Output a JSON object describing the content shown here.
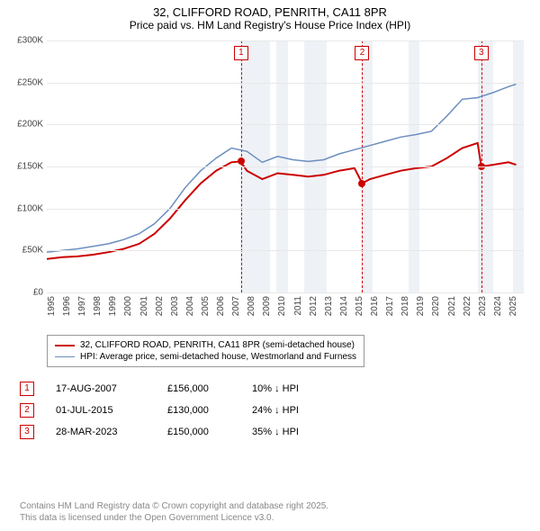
{
  "title": {
    "line1": "32, CLIFFORD ROAD, PENRITH, CA11 8PR",
    "line2": "Price paid vs. HM Land Registry's House Price Index (HPI)"
  },
  "chart": {
    "type": "line",
    "x_range": [
      1995,
      2026
    ],
    "y_range": [
      0,
      300000
    ],
    "y_ticks": [
      0,
      50000,
      100000,
      150000,
      200000,
      250000,
      300000
    ],
    "y_tick_labels": [
      "£0",
      "£50K",
      "£100K",
      "£150K",
      "£200K",
      "£250K",
      "£300K"
    ],
    "x_ticks": [
      1995,
      1996,
      1997,
      1998,
      1999,
      2000,
      2001,
      2002,
      2003,
      2004,
      2005,
      2006,
      2007,
      2008,
      2009,
      2010,
      2011,
      2012,
      2013,
      2014,
      2015,
      2016,
      2017,
      2018,
      2019,
      2020,
      2021,
      2022,
      2023,
      2024,
      2025
    ],
    "background_color": "#ffffff",
    "grid_color": "#e8e8e8",
    "band_color": "#eef2f7",
    "bands": [
      [
        2007.6,
        2009.5
      ],
      [
        2009.9,
        2010.7
      ],
      [
        2011.7,
        2013.2
      ],
      [
        2015.5,
        2016.2
      ],
      [
        2018.5,
        2019.2
      ],
      [
        2023.0,
        2024.0
      ],
      [
        2025.3,
        2026.0
      ]
    ],
    "series": [
      {
        "name": "price_paid",
        "color": "#cc0000",
        "width": 2,
        "points": [
          [
            1995,
            40000
          ],
          [
            1996,
            42000
          ],
          [
            1997,
            43000
          ],
          [
            1998,
            45000
          ],
          [
            1999,
            48000
          ],
          [
            2000,
            52000
          ],
          [
            2001,
            58000
          ],
          [
            2002,
            70000
          ],
          [
            2003,
            88000
          ],
          [
            2004,
            110000
          ],
          [
            2005,
            130000
          ],
          [
            2006,
            145000
          ],
          [
            2007,
            155000
          ],
          [
            2007.6,
            156000
          ],
          [
            2008,
            145000
          ],
          [
            2009,
            135000
          ],
          [
            2010,
            142000
          ],
          [
            2011,
            140000
          ],
          [
            2012,
            138000
          ],
          [
            2013,
            140000
          ],
          [
            2014,
            145000
          ],
          [
            2015,
            148000
          ],
          [
            2015.5,
            130000
          ],
          [
            2016,
            135000
          ],
          [
            2017,
            140000
          ],
          [
            2018,
            145000
          ],
          [
            2019,
            148000
          ],
          [
            2020,
            150000
          ],
          [
            2021,
            160000
          ],
          [
            2022,
            172000
          ],
          [
            2023,
            178000
          ],
          [
            2023.24,
            150000
          ],
          [
            2024,
            152000
          ],
          [
            2025,
            155000
          ],
          [
            2025.5,
            152000
          ]
        ]
      },
      {
        "name": "hpi",
        "color": "#6c8ebf",
        "width": 1.5,
        "points": [
          [
            1995,
            48000
          ],
          [
            1996,
            50000
          ],
          [
            1997,
            52000
          ],
          [
            1998,
            55000
          ],
          [
            1999,
            58000
          ],
          [
            2000,
            63000
          ],
          [
            2001,
            70000
          ],
          [
            2002,
            82000
          ],
          [
            2003,
            100000
          ],
          [
            2004,
            125000
          ],
          [
            2005,
            145000
          ],
          [
            2006,
            160000
          ],
          [
            2007,
            172000
          ],
          [
            2008,
            168000
          ],
          [
            2009,
            155000
          ],
          [
            2010,
            162000
          ],
          [
            2011,
            158000
          ],
          [
            2012,
            156000
          ],
          [
            2013,
            158000
          ],
          [
            2014,
            165000
          ],
          [
            2015,
            170000
          ],
          [
            2016,
            175000
          ],
          [
            2017,
            180000
          ],
          [
            2018,
            185000
          ],
          [
            2019,
            188000
          ],
          [
            2020,
            192000
          ],
          [
            2021,
            210000
          ],
          [
            2022,
            230000
          ],
          [
            2023,
            232000
          ],
          [
            2024,
            238000
          ],
          [
            2025,
            245000
          ],
          [
            2025.5,
            248000
          ]
        ]
      }
    ],
    "sale_markers": [
      {
        "n": 1,
        "year": 2007.63,
        "price": 156000
      },
      {
        "n": 2,
        "year": 2015.5,
        "price": 130000
      },
      {
        "n": 3,
        "year": 2023.24,
        "price": 150000
      }
    ],
    "marker_dash_color": "#cc0000",
    "marker_box_border": "#cc0000"
  },
  "legend": {
    "items": [
      {
        "color": "#cc0000",
        "width": 2,
        "label": "32, CLIFFORD ROAD, PENRITH, CA11 8PR (semi-detached house)"
      },
      {
        "color": "#6c8ebf",
        "width": 1.5,
        "label": "HPI: Average price, semi-detached house, Westmorland and Furness"
      }
    ]
  },
  "sales": [
    {
      "n": "1",
      "date": "17-AUG-2007",
      "price": "£156,000",
      "delta": "10% ↓ HPI"
    },
    {
      "n": "2",
      "date": "01-JUL-2015",
      "price": "£130,000",
      "delta": "24% ↓ HPI"
    },
    {
      "n": "3",
      "date": "28-MAR-2023",
      "price": "£150,000",
      "delta": "35% ↓ HPI"
    }
  ],
  "footer": {
    "line1": "Contains HM Land Registry data © Crown copyright and database right 2025.",
    "line2": "This data is licensed under the Open Government Licence v3.0."
  }
}
